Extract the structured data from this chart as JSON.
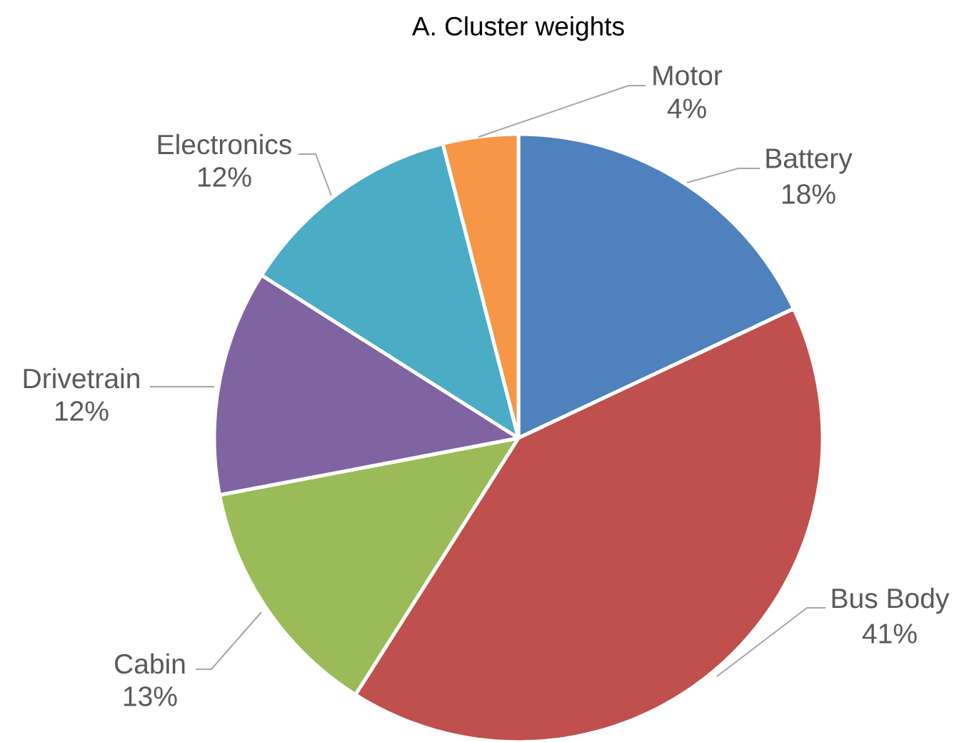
{
  "chart_data": {
    "type": "pie",
    "title": "A. Cluster weights",
    "categories": [
      "Battery",
      "Bus Body",
      "Cabin",
      "Drivetrain",
      "Electronics",
      "Motor"
    ],
    "values": [
      18,
      41,
      13,
      12,
      12,
      4
    ],
    "colors": [
      "#4f81bd",
      "#c0504d",
      "#9bbb59",
      "#8064a2",
      "#4bacc6",
      "#f79646"
    ],
    "value_labels": [
      "18%",
      "41%",
      "13%",
      "12%",
      "12%",
      "4%"
    ]
  }
}
